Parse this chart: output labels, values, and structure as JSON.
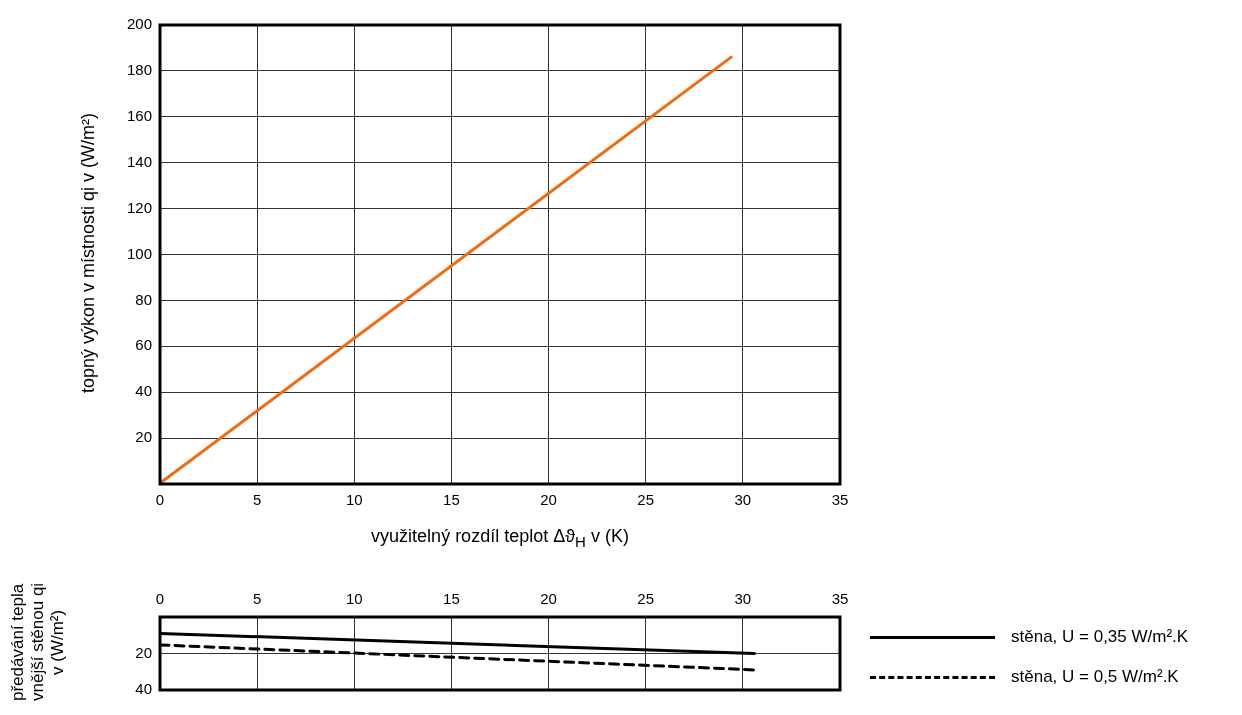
{
  "chart_data": [
    {
      "type": "line",
      "xlabel": "využitelný rozdíl teplot Δϑ$_{H}$ v (K)",
      "ylabel": "topný výkon v místnosti qi v (W/m²)",
      "x": [
        0.1,
        29.4
      ],
      "series": [
        {
          "color": "#ef6c14",
          "values": [
            1,
            186
          ]
        }
      ],
      "xlim": [
        0,
        35
      ],
      "xticks": [
        0,
        5,
        10,
        15,
        20,
        25,
        30,
        35
      ],
      "ylim": [
        0,
        200
      ],
      "yticks": [
        20,
        40,
        60,
        80,
        100,
        120,
        140,
        160,
        180,
        200
      ],
      "grid": true,
      "marker": "none"
    },
    {
      "type": "line",
      "ylabel": "předávání tepla vnější stěnou qi v (W/m²)",
      "x": [
        0,
        30.6
      ],
      "series": [
        {
          "name": "stěna, U = 0,35 W/m².K",
          "color": "#000000",
          "line_style": "solid",
          "values": [
            9,
            20
          ]
        },
        {
          "name": "stěna, U = 0,5 W/m².K",
          "color": "#000000",
          "line_style": "dashed",
          "values": [
            15.3,
            29
          ]
        }
      ],
      "xlim": [
        0,
        35
      ],
      "xticks": [
        0,
        5,
        10,
        15,
        20,
        25,
        30,
        35
      ],
      "ylim": [
        40,
        0
      ],
      "yticks": [
        20,
        40
      ],
      "grid": true,
      "marker": "none",
      "legend": "right"
    }
  ]
}
